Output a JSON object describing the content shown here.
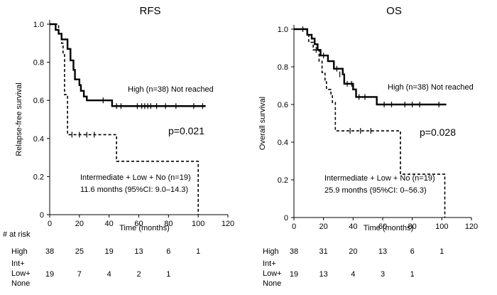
{
  "chart_data": [
    {
      "type": "line",
      "subtype": "kaplan-meier",
      "title": "RFS",
      "xlabel": "Time (months)",
      "ylabel": "Relapse-free survival",
      "xlim": [
        0,
        120
      ],
      "ylim": [
        0,
        1.0
      ],
      "xticks": [
        "0",
        "20",
        "40",
        "60",
        "80",
        "100",
        "120"
      ],
      "yticks": [
        "0",
        "0.2",
        "0.4",
        "0.6",
        "0.8",
        "1.0"
      ],
      "series": [
        {
          "name": "High",
          "style": "solid",
          "steps": [
            [
              0,
              1.0
            ],
            [
              4,
              0.97
            ],
            [
              6,
              0.95
            ],
            [
              8,
              0.92
            ],
            [
              12,
              0.87
            ],
            [
              14,
              0.81
            ],
            [
              16,
              0.76
            ],
            [
              17,
              0.71
            ],
            [
              20,
              0.68
            ],
            [
              21,
              0.65
            ],
            [
              23,
              0.62
            ],
            [
              25,
              0.6
            ],
            [
              42,
              0.57
            ],
            [
              105,
              0.57
            ]
          ],
          "censor": [
            [
              36,
              0.6
            ],
            [
              45,
              0.57
            ],
            [
              48,
              0.57
            ],
            [
              59,
              0.57
            ],
            [
              62,
              0.57
            ],
            [
              64,
              0.57
            ],
            [
              66,
              0.57
            ],
            [
              68,
              0.57
            ],
            [
              72,
              0.57
            ],
            [
              78,
              0.57
            ],
            [
              85,
              0.57
            ],
            [
              97,
              0.57
            ],
            [
              103,
              0.57
            ]
          ]
        },
        {
          "name": "Intermediate + Low + No",
          "style": "dashed",
          "steps": [
            [
              0,
              1.0
            ],
            [
              6,
              0.95
            ],
            [
              8,
              0.9
            ],
            [
              9,
              0.84
            ],
            [
              10,
              0.63
            ],
            [
              12,
              0.42
            ],
            [
              43,
              0.42
            ],
            [
              45,
              0.28
            ],
            [
              98,
              0.28
            ],
            [
              100,
              0.0
            ]
          ],
          "censor": [
            [
              15,
              0.42
            ],
            [
              20,
              0.42
            ],
            [
              25,
              0.42
            ],
            [
              30,
              0.42
            ]
          ]
        }
      ],
      "annotations": {
        "high_label": "High (n=38) Not reached",
        "pvalue": "p=0.021",
        "group2_label": "Intermediate + Low + No (n=19)",
        "group2_median": "11.6 months (95%CI: 9.0–14.3)"
      },
      "risk_table": {
        "header": "# at risk",
        "rows": [
          {
            "label": "High",
            "values": [
              "38",
              "25",
              "19",
              "13",
              "6",
              "1"
            ]
          },
          {
            "label_lines": [
              "Int+",
              "Low+",
              "None"
            ],
            "values": [
              "19",
              "7",
              "4",
              "2",
              "1",
              ""
            ]
          }
        ]
      }
    },
    {
      "type": "line",
      "subtype": "kaplan-meier",
      "title": "OS",
      "xlabel": "Time (months)",
      "ylabel": "Overall survival",
      "xlim": [
        0,
        120
      ],
      "ylim": [
        0,
        1.0
      ],
      "xticks": [
        "0",
        "20",
        "40",
        "60",
        "80",
        "100",
        "120"
      ],
      "yticks": [
        "0",
        "0.2",
        "0.4",
        "0.6",
        "0.8",
        "1.0"
      ],
      "series": [
        {
          "name": "High",
          "style": "solid",
          "steps": [
            [
              0,
              1.0
            ],
            [
              9,
              0.97
            ],
            [
              12,
              0.95
            ],
            [
              14,
              0.92
            ],
            [
              16,
              0.89
            ],
            [
              18,
              0.86
            ],
            [
              23,
              0.83
            ],
            [
              27,
              0.79
            ],
            [
              33,
              0.76
            ],
            [
              34,
              0.71
            ],
            [
              40,
              0.68
            ],
            [
              42,
              0.64
            ],
            [
              56,
              0.6
            ],
            [
              103,
              0.6
            ]
          ],
          "censor": [
            [
              6,
              1.0
            ],
            [
              20,
              0.86
            ],
            [
              29,
              0.79
            ],
            [
              31,
              0.76
            ],
            [
              36,
              0.71
            ],
            [
              39,
              0.71
            ],
            [
              44,
              0.64
            ],
            [
              48,
              0.64
            ],
            [
              61,
              0.6
            ],
            [
              66,
              0.6
            ],
            [
              75,
              0.6
            ],
            [
              80,
              0.6
            ],
            [
              85,
              0.6
            ],
            [
              98,
              0.6
            ]
          ]
        },
        {
          "name": "Intermediate + Low + No",
          "style": "dashed",
          "steps": [
            [
              0,
              1.0
            ],
            [
              9,
              0.97
            ],
            [
              10,
              0.93
            ],
            [
              13,
              0.89
            ],
            [
              17,
              0.83
            ],
            [
              19,
              0.77
            ],
            [
              21,
              0.72
            ],
            [
              22,
              0.68
            ],
            [
              25,
              0.65
            ],
            [
              26,
              0.61
            ],
            [
              28,
              0.46
            ],
            [
              72,
              0.23
            ],
            [
              102,
              0.0
            ]
          ],
          "censor": [
            [
              15,
              0.89
            ],
            [
              38,
              0.46
            ],
            [
              45,
              0.46
            ],
            [
              52,
              0.46
            ]
          ]
        }
      ],
      "annotations": {
        "high_label": "High (n=38) Not reached",
        "pvalue": "p=0.028",
        "group2_label": "Intermediate + Low + No (n=19)",
        "group2_median": "25.9 months (95%CI: 0–56.3)"
      },
      "risk_table": {
        "header": "# at risk",
        "rows": [
          {
            "label": "High",
            "values": [
              "38",
              "31",
              "20",
              "13",
              "6",
              "1"
            ]
          },
          {
            "label_lines": [
              "Int+",
              "Low+",
              "None"
            ],
            "values": [
              "19",
              "13",
              "4",
              "3",
              "1",
              ""
            ]
          }
        ]
      }
    }
  ]
}
